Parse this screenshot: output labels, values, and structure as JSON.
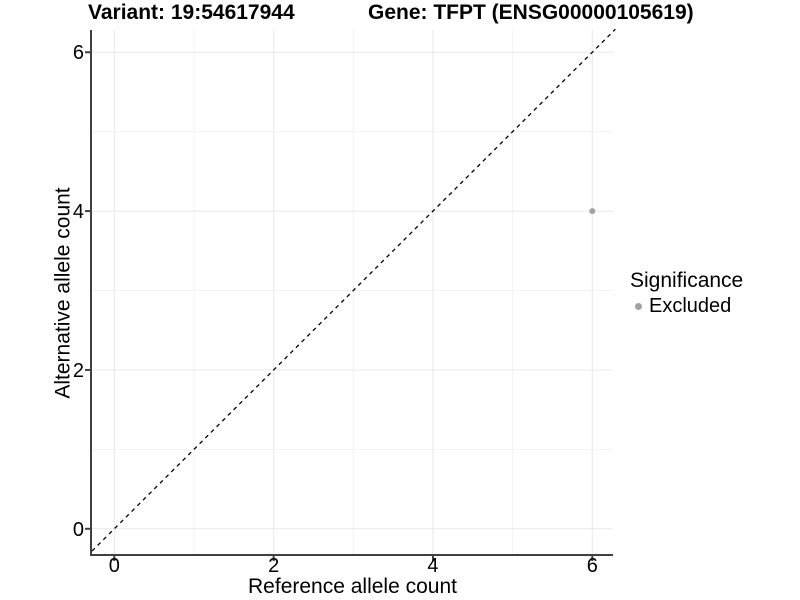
{
  "chart_data": {
    "type": "scatter",
    "title_left": "Variant: 19:54617944",
    "title_right": "Gene: TFPT (ENSG00000105619)",
    "xlabel": "Reference allele count",
    "ylabel": "Alternative allele count",
    "xlim": [
      -0.28,
      6.26
    ],
    "ylim": [
      -0.33,
      6.28
    ],
    "x_ticks": [
      0,
      2,
      4,
      6
    ],
    "y_ticks": [
      0,
      2,
      4,
      6
    ],
    "x_minor_ticks": [
      1,
      3,
      5
    ],
    "y_minor_ticks": [
      1,
      3,
      5
    ],
    "grid": "major+minor",
    "legend": {
      "title": "Significance",
      "position": "right"
    },
    "identity_line": {
      "style": "dashed",
      "color": "#000000",
      "from": [
        -0.28,
        -0.28
      ],
      "to": [
        6.29,
        6.29
      ]
    },
    "series": [
      {
        "name": "Excluded",
        "color": "#a2a2a2",
        "points": [
          [
            6,
            4
          ]
        ]
      }
    ]
  },
  "colors": {
    "background": "#ffffff",
    "grid_major": "#e8e8e8",
    "grid_minor": "#f3f3f3",
    "axis": "#404040",
    "text": "#000000"
  }
}
